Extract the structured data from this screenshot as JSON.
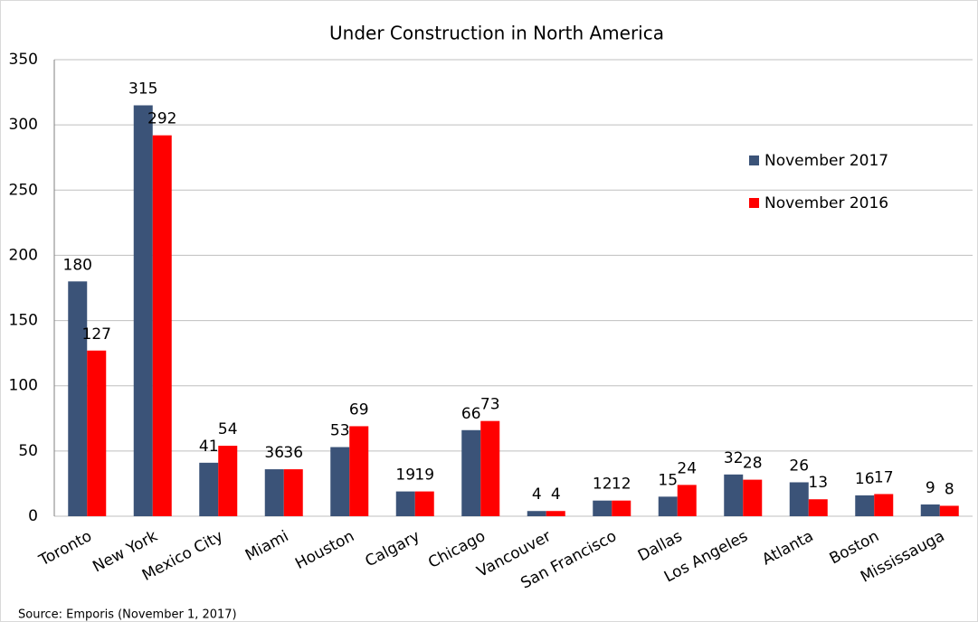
{
  "chart_data": {
    "type": "bar",
    "title": "Under Construction in North America",
    "categories": [
      "Toronto",
      "New York",
      "Mexico City",
      "Miami",
      "Houston",
      "Calgary",
      "Chicago",
      "Vancouver",
      "San Francisco",
      "Dallas",
      "Los Angeles",
      "Atlanta",
      "Boston",
      "Mississauga"
    ],
    "series": [
      {
        "name": "November 2017",
        "color": "#3b5378",
        "values": [
          180,
          315,
          41,
          36,
          53,
          19,
          66,
          4,
          12,
          15,
          32,
          26,
          16,
          9
        ]
      },
      {
        "name": "November 2016",
        "color": "#ff0000",
        "values": [
          127,
          292,
          54,
          36,
          69,
          19,
          73,
          4,
          12,
          24,
          28,
          13,
          17,
          8
        ]
      }
    ],
    "ylim": [
      0,
      350
    ],
    "yticks": [
      0,
      50,
      100,
      150,
      200,
      250,
      300,
      350
    ],
    "grid": true,
    "source": "Source: Emporis (November 1, 2017)"
  }
}
